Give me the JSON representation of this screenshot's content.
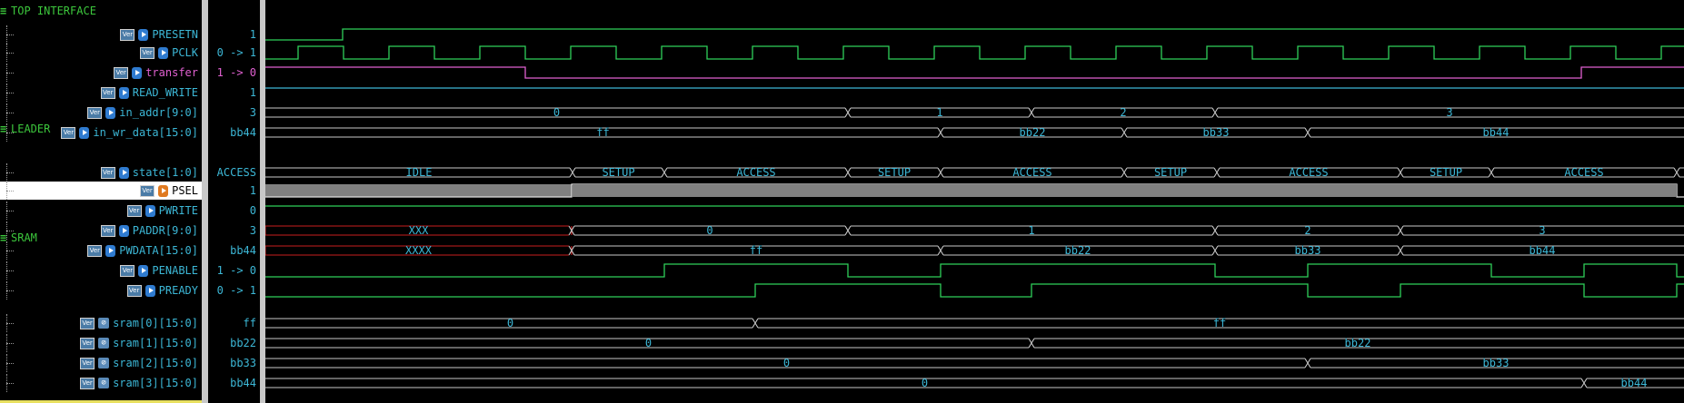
{
  "groups": [
    {
      "id": "top",
      "label": "TOP INTERFACE",
      "icon": "collapse-icon"
    },
    {
      "id": "leader",
      "label": "LEADER",
      "icon": "collapse-icon"
    },
    {
      "id": "sram",
      "label": "SRAM",
      "icon": "collapse-icon"
    }
  ],
  "signals": [
    {
      "name": "PRESETN",
      "value": "1",
      "icon": "port-in-icon",
      "color": "#3cb7d6"
    },
    {
      "name": "PCLK",
      "value": "0 -> 1",
      "icon": "port-in-icon",
      "color": "#3cb7d6"
    },
    {
      "name": "transfer",
      "value": "1 -> 0",
      "icon": "port-in-icon",
      "color": "#e060d0"
    },
    {
      "name": "READ_WRITE",
      "value": "1",
      "icon": "port-in-icon",
      "color": "#3cb7d6"
    },
    {
      "name": "in_addr[9:0]",
      "value": "3",
      "icon": "port-in-icon",
      "color": "#3cb7d6"
    },
    {
      "name": "in_wr_data[15:0]",
      "value": "bb44",
      "icon": "port-in-icon",
      "color": "#3cb7d6"
    },
    {
      "name": "state[1:0]",
      "value": "ACCESS",
      "icon": "port-in-icon",
      "color": "#3cb7d6"
    },
    {
      "name": "PSEL",
      "value": "1",
      "icon": "port-out-icon",
      "color": "#000000"
    },
    {
      "name": "PWRITE",
      "value": "0",
      "icon": "port-in-icon",
      "color": "#3cb7d6"
    },
    {
      "name": "PADDR[9:0]",
      "value": "3",
      "icon": "port-in-icon",
      "color": "#3cb7d6"
    },
    {
      "name": "PWDATA[15:0]",
      "value": "bb44",
      "icon": "port-in-icon",
      "color": "#3cb7d6"
    },
    {
      "name": "PENABLE",
      "value": "1 -> 0",
      "icon": "port-in-icon",
      "color": "#3cb7d6"
    },
    {
      "name": "PREADY",
      "value": "0 -> 1",
      "icon": "port-in-icon",
      "color": "#3cb7d6"
    },
    {
      "name": "sram[0][15:0]",
      "value": "ff",
      "icon": "reg-icon",
      "color": "#3cb7d6"
    },
    {
      "name": "sram[1][15:0]",
      "value": "bb22",
      "icon": "reg-icon",
      "color": "#3cb7d6"
    },
    {
      "name": "sram[2][15:0]",
      "value": "bb33",
      "icon": "reg-icon",
      "color": "#3cb7d6"
    },
    {
      "name": "sram[3][15:0]",
      "value": "bb44",
      "icon": "reg-icon",
      "color": "#3cb7d6"
    }
  ],
  "verilog_badge": "Ver",
  "waves": {
    "colors": {
      "bit": "#2fcf5a",
      "bus": "#c8c8c8",
      "bus_text": "#3cb7d6",
      "magenta": "#e060d0",
      "xxx": "#c81e1e",
      "psel_fill": "#808080"
    },
    "segments": {
      "in_addr": [
        "0",
        "1",
        "2",
        "3"
      ],
      "in_wr_data": [
        "ff",
        "bb22",
        "bb33",
        "bb44"
      ],
      "state": [
        "IDLE",
        "SETUP",
        "ACCESS",
        "SETUP",
        "ACCESS",
        "SETUP",
        "ACCESS",
        "SETUP",
        "ACCESS"
      ],
      "paddr": [
        "XXX",
        "0",
        "1",
        "2",
        "3"
      ],
      "pwdata": [
        "XXXX",
        "ff",
        "bb22",
        "bb33",
        "bb44"
      ],
      "sram0": [
        "0",
        "ff"
      ],
      "sram1": [
        "0",
        "bb22"
      ],
      "sram2": [
        "0",
        "bb33"
      ],
      "sram3": [
        "0",
        "bb44"
      ]
    }
  }
}
